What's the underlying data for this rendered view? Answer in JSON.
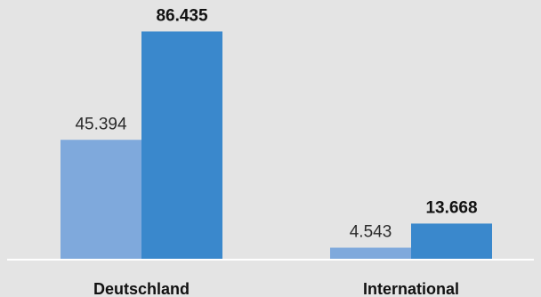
{
  "chart_data": {
    "type": "bar",
    "categories": [
      "Deutschland",
      "International"
    ],
    "series": [
      {
        "values": [
          45394,
          4543
        ],
        "labels": [
          "45.394",
          "4.543"
        ],
        "color": "#7fa9dc",
        "label_weight": "normal"
      },
      {
        "values": [
          86435,
          13668
        ],
        "labels": [
          "86.435",
          "13.668"
        ],
        "color": "#3a88cc",
        "label_weight": "bold"
      }
    ],
    "ylim": [
      0,
      95000
    ],
    "grid": false,
    "legend": "none",
    "baseline_color": "#ffffff",
    "background_color": "#e4e4e4"
  }
}
